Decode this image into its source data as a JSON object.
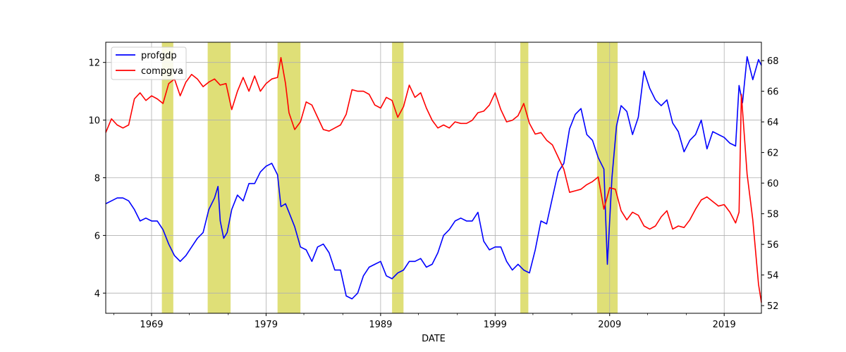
{
  "chart_data": {
    "type": "line",
    "xlabel": "DATE",
    "x_range": [
      1965.0,
      2022.25
    ],
    "x_ticks": [
      "1969",
      "1979",
      "1989",
      "1999",
      "2009",
      "2019"
    ],
    "left_axis": {
      "range": [
        3.3,
        12.7
      ],
      "ticks": [
        "4",
        "6",
        "8",
        "10",
        "12"
      ]
    },
    "right_axis": {
      "range": [
        51.5,
        69.2
      ],
      "ticks": [
        "52",
        "54",
        "56",
        "58",
        "60",
        "62",
        "64",
        "66",
        "68"
      ]
    },
    "grid": true,
    "legend_position": "top-left",
    "recession_color": "#d4d44a",
    "recessions": [
      [
        1969.9,
        1970.9
      ],
      [
        1973.9,
        1975.9
      ],
      [
        1980.0,
        1982.0
      ],
      [
        1990.0,
        1991.0
      ],
      [
        2001.2,
        2001.9
      ],
      [
        2007.9,
        2009.7
      ]
    ],
    "series": [
      {
        "name": "profgdp",
        "color": "#0000ff",
        "axis": "left",
        "points": [
          [
            1965.0,
            7.1
          ],
          [
            1965.5,
            7.2
          ],
          [
            1966.0,
            7.3
          ],
          [
            1966.5,
            7.3
          ],
          [
            1967.0,
            7.2
          ],
          [
            1967.5,
            6.9
          ],
          [
            1968.0,
            6.5
          ],
          [
            1968.5,
            6.6
          ],
          [
            1969.0,
            6.5
          ],
          [
            1969.5,
            6.5
          ],
          [
            1970.0,
            6.2
          ],
          [
            1970.5,
            5.7
          ],
          [
            1971.0,
            5.3
          ],
          [
            1971.5,
            5.1
          ],
          [
            1972.0,
            5.3
          ],
          [
            1972.5,
            5.6
          ],
          [
            1973.0,
            5.9
          ],
          [
            1973.5,
            6.1
          ],
          [
            1974.0,
            6.9
          ],
          [
            1974.5,
            7.3
          ],
          [
            1974.8,
            7.7
          ],
          [
            1975.0,
            6.5
          ],
          [
            1975.3,
            5.9
          ],
          [
            1975.6,
            6.1
          ],
          [
            1976.0,
            6.9
          ],
          [
            1976.5,
            7.4
          ],
          [
            1977.0,
            7.2
          ],
          [
            1977.5,
            7.8
          ],
          [
            1978.0,
            7.8
          ],
          [
            1978.5,
            8.2
          ],
          [
            1979.0,
            8.4
          ],
          [
            1979.5,
            8.5
          ],
          [
            1980.0,
            8.1
          ],
          [
            1980.3,
            7.0
          ],
          [
            1980.7,
            7.1
          ],
          [
            1981.0,
            6.8
          ],
          [
            1981.5,
            6.3
          ],
          [
            1982.0,
            5.6
          ],
          [
            1982.5,
            5.5
          ],
          [
            1983.0,
            5.1
          ],
          [
            1983.5,
            5.6
          ],
          [
            1984.0,
            5.7
          ],
          [
            1984.5,
            5.4
          ],
          [
            1985.0,
            4.8
          ],
          [
            1985.5,
            4.8
          ],
          [
            1986.0,
            3.9
          ],
          [
            1986.5,
            3.8
          ],
          [
            1987.0,
            4.0
          ],
          [
            1987.5,
            4.6
          ],
          [
            1988.0,
            4.9
          ],
          [
            1988.5,
            5.0
          ],
          [
            1989.0,
            5.1
          ],
          [
            1989.5,
            4.6
          ],
          [
            1990.0,
            4.5
          ],
          [
            1990.5,
            4.7
          ],
          [
            1991.0,
            4.8
          ],
          [
            1991.5,
            5.1
          ],
          [
            1992.0,
            5.1
          ],
          [
            1992.5,
            5.2
          ],
          [
            1993.0,
            4.9
          ],
          [
            1993.5,
            5.0
          ],
          [
            1994.0,
            5.4
          ],
          [
            1994.5,
            6.0
          ],
          [
            1995.0,
            6.2
          ],
          [
            1995.5,
            6.5
          ],
          [
            1996.0,
            6.6
          ],
          [
            1996.5,
            6.5
          ],
          [
            1997.0,
            6.5
          ],
          [
            1997.5,
            6.8
          ],
          [
            1998.0,
            5.8
          ],
          [
            1998.5,
            5.5
          ],
          [
            1999.0,
            5.6
          ],
          [
            1999.5,
            5.6
          ],
          [
            2000.0,
            5.1
          ],
          [
            2000.5,
            4.8
          ],
          [
            2001.0,
            5.0
          ],
          [
            2001.5,
            4.8
          ],
          [
            2002.0,
            4.7
          ],
          [
            2002.5,
            5.5
          ],
          [
            2003.0,
            6.5
          ],
          [
            2003.5,
            6.4
          ],
          [
            2004.0,
            7.3
          ],
          [
            2004.5,
            8.2
          ],
          [
            2005.0,
            8.5
          ],
          [
            2005.5,
            9.7
          ],
          [
            2006.0,
            10.2
          ],
          [
            2006.5,
            10.4
          ],
          [
            2007.0,
            9.5
          ],
          [
            2007.5,
            9.3
          ],
          [
            2008.0,
            8.7
          ],
          [
            2008.5,
            8.3
          ],
          [
            2008.8,
            5.0
          ],
          [
            2009.2,
            8.0
          ],
          [
            2009.6,
            9.8
          ],
          [
            2010.0,
            10.5
          ],
          [
            2010.5,
            10.3
          ],
          [
            2011.0,
            9.5
          ],
          [
            2011.5,
            10.1
          ],
          [
            2012.0,
            11.7
          ],
          [
            2012.5,
            11.1
          ],
          [
            2013.0,
            10.7
          ],
          [
            2013.5,
            10.5
          ],
          [
            2014.0,
            10.7
          ],
          [
            2014.5,
            9.9
          ],
          [
            2015.0,
            9.6
          ],
          [
            2015.5,
            8.9
          ],
          [
            2016.0,
            9.3
          ],
          [
            2016.5,
            9.5
          ],
          [
            2017.0,
            10.0
          ],
          [
            2017.5,
            9.0
          ],
          [
            2018.0,
            9.6
          ],
          [
            2018.5,
            9.5
          ],
          [
            2019.0,
            9.4
          ],
          [
            2019.5,
            9.2
          ],
          [
            2020.0,
            9.1
          ],
          [
            2020.3,
            11.2
          ],
          [
            2020.6,
            10.6
          ],
          [
            2021.0,
            12.2
          ],
          [
            2021.5,
            11.4
          ],
          [
            2022.0,
            12.1
          ],
          [
            2022.25,
            11.9
          ]
        ]
      },
      {
        "name": "compgva",
        "color": "#ff0000",
        "axis": "right",
        "points": [
          [
            1965.0,
            63.3
          ],
          [
            1965.5,
            64.2
          ],
          [
            1966.0,
            63.8
          ],
          [
            1966.5,
            63.6
          ],
          [
            1967.0,
            63.8
          ],
          [
            1967.5,
            65.5
          ],
          [
            1968.0,
            65.9
          ],
          [
            1968.5,
            65.4
          ],
          [
            1969.0,
            65.7
          ],
          [
            1969.5,
            65.5
          ],
          [
            1970.0,
            65.2
          ],
          [
            1970.5,
            66.5
          ],
          [
            1971.0,
            66.8
          ],
          [
            1971.5,
            65.7
          ],
          [
            1972.0,
            66.6
          ],
          [
            1972.5,
            67.1
          ],
          [
            1973.0,
            66.8
          ],
          [
            1973.5,
            66.3
          ],
          [
            1974.0,
            66.6
          ],
          [
            1974.5,
            66.8
          ],
          [
            1975.0,
            66.4
          ],
          [
            1975.5,
            66.5
          ],
          [
            1976.0,
            64.8
          ],
          [
            1976.5,
            66.0
          ],
          [
            1977.0,
            66.9
          ],
          [
            1977.5,
            66.0
          ],
          [
            1978.0,
            67.0
          ],
          [
            1978.5,
            66.0
          ],
          [
            1979.0,
            66.5
          ],
          [
            1979.5,
            66.8
          ],
          [
            1980.0,
            66.9
          ],
          [
            1980.3,
            68.2
          ],
          [
            1980.7,
            66.5
          ],
          [
            1981.0,
            64.6
          ],
          [
            1981.5,
            63.5
          ],
          [
            1982.0,
            64.0
          ],
          [
            1982.5,
            65.3
          ],
          [
            1983.0,
            65.1
          ],
          [
            1983.5,
            64.3
          ],
          [
            1984.0,
            63.5
          ],
          [
            1984.5,
            63.4
          ],
          [
            1985.0,
            63.6
          ],
          [
            1985.5,
            63.8
          ],
          [
            1986.0,
            64.5
          ],
          [
            1986.5,
            66.1
          ],
          [
            1987.0,
            66.0
          ],
          [
            1987.5,
            66.0
          ],
          [
            1988.0,
            65.8
          ],
          [
            1988.5,
            65.1
          ],
          [
            1989.0,
            64.9
          ],
          [
            1989.5,
            65.6
          ],
          [
            1990.0,
            65.4
          ],
          [
            1990.5,
            64.3
          ],
          [
            1991.0,
            65.0
          ],
          [
            1991.5,
            66.4
          ],
          [
            1992.0,
            65.6
          ],
          [
            1992.5,
            65.9
          ],
          [
            1993.0,
            64.9
          ],
          [
            1993.5,
            64.1
          ],
          [
            1994.0,
            63.6
          ],
          [
            1994.5,
            63.8
          ],
          [
            1995.0,
            63.6
          ],
          [
            1995.5,
            64.0
          ],
          [
            1996.0,
            63.9
          ],
          [
            1996.5,
            63.9
          ],
          [
            1997.0,
            64.1
          ],
          [
            1997.5,
            64.6
          ],
          [
            1998.0,
            64.7
          ],
          [
            1998.5,
            65.1
          ],
          [
            1999.0,
            65.9
          ],
          [
            1999.5,
            64.8
          ],
          [
            2000.0,
            64.0
          ],
          [
            2000.5,
            64.1
          ],
          [
            2001.0,
            64.4
          ],
          [
            2001.5,
            65.2
          ],
          [
            2002.0,
            63.9
          ],
          [
            2002.5,
            63.2
          ],
          [
            2003.0,
            63.3
          ],
          [
            2003.5,
            62.8
          ],
          [
            2004.0,
            62.5
          ],
          [
            2004.5,
            61.7
          ],
          [
            2005.0,
            60.9
          ],
          [
            2005.5,
            59.4
          ],
          [
            2006.0,
            59.5
          ],
          [
            2006.5,
            59.6
          ],
          [
            2007.0,
            59.9
          ],
          [
            2007.5,
            60.1
          ],
          [
            2008.0,
            60.4
          ],
          [
            2008.5,
            58.3
          ],
          [
            2009.0,
            59.7
          ],
          [
            2009.5,
            59.6
          ],
          [
            2010.0,
            58.2
          ],
          [
            2010.5,
            57.6
          ],
          [
            2011.0,
            58.1
          ],
          [
            2011.5,
            57.9
          ],
          [
            2012.0,
            57.2
          ],
          [
            2012.5,
            57.0
          ],
          [
            2013.0,
            57.2
          ],
          [
            2013.5,
            57.8
          ],
          [
            2014.0,
            58.2
          ],
          [
            2014.5,
            57.0
          ],
          [
            2015.0,
            57.2
          ],
          [
            2015.5,
            57.1
          ],
          [
            2016.0,
            57.6
          ],
          [
            2016.5,
            58.3
          ],
          [
            2017.0,
            58.9
          ],
          [
            2017.5,
            59.1
          ],
          [
            2018.0,
            58.8
          ],
          [
            2018.5,
            58.5
          ],
          [
            2019.0,
            58.6
          ],
          [
            2019.5,
            58.1
          ],
          [
            2020.0,
            57.4
          ],
          [
            2020.3,
            58.1
          ],
          [
            2020.5,
            65.8
          ],
          [
            2021.0,
            60.6
          ],
          [
            2021.5,
            57.6
          ],
          [
            2022.0,
            53.4
          ],
          [
            2022.25,
            52.2
          ]
        ]
      }
    ]
  }
}
